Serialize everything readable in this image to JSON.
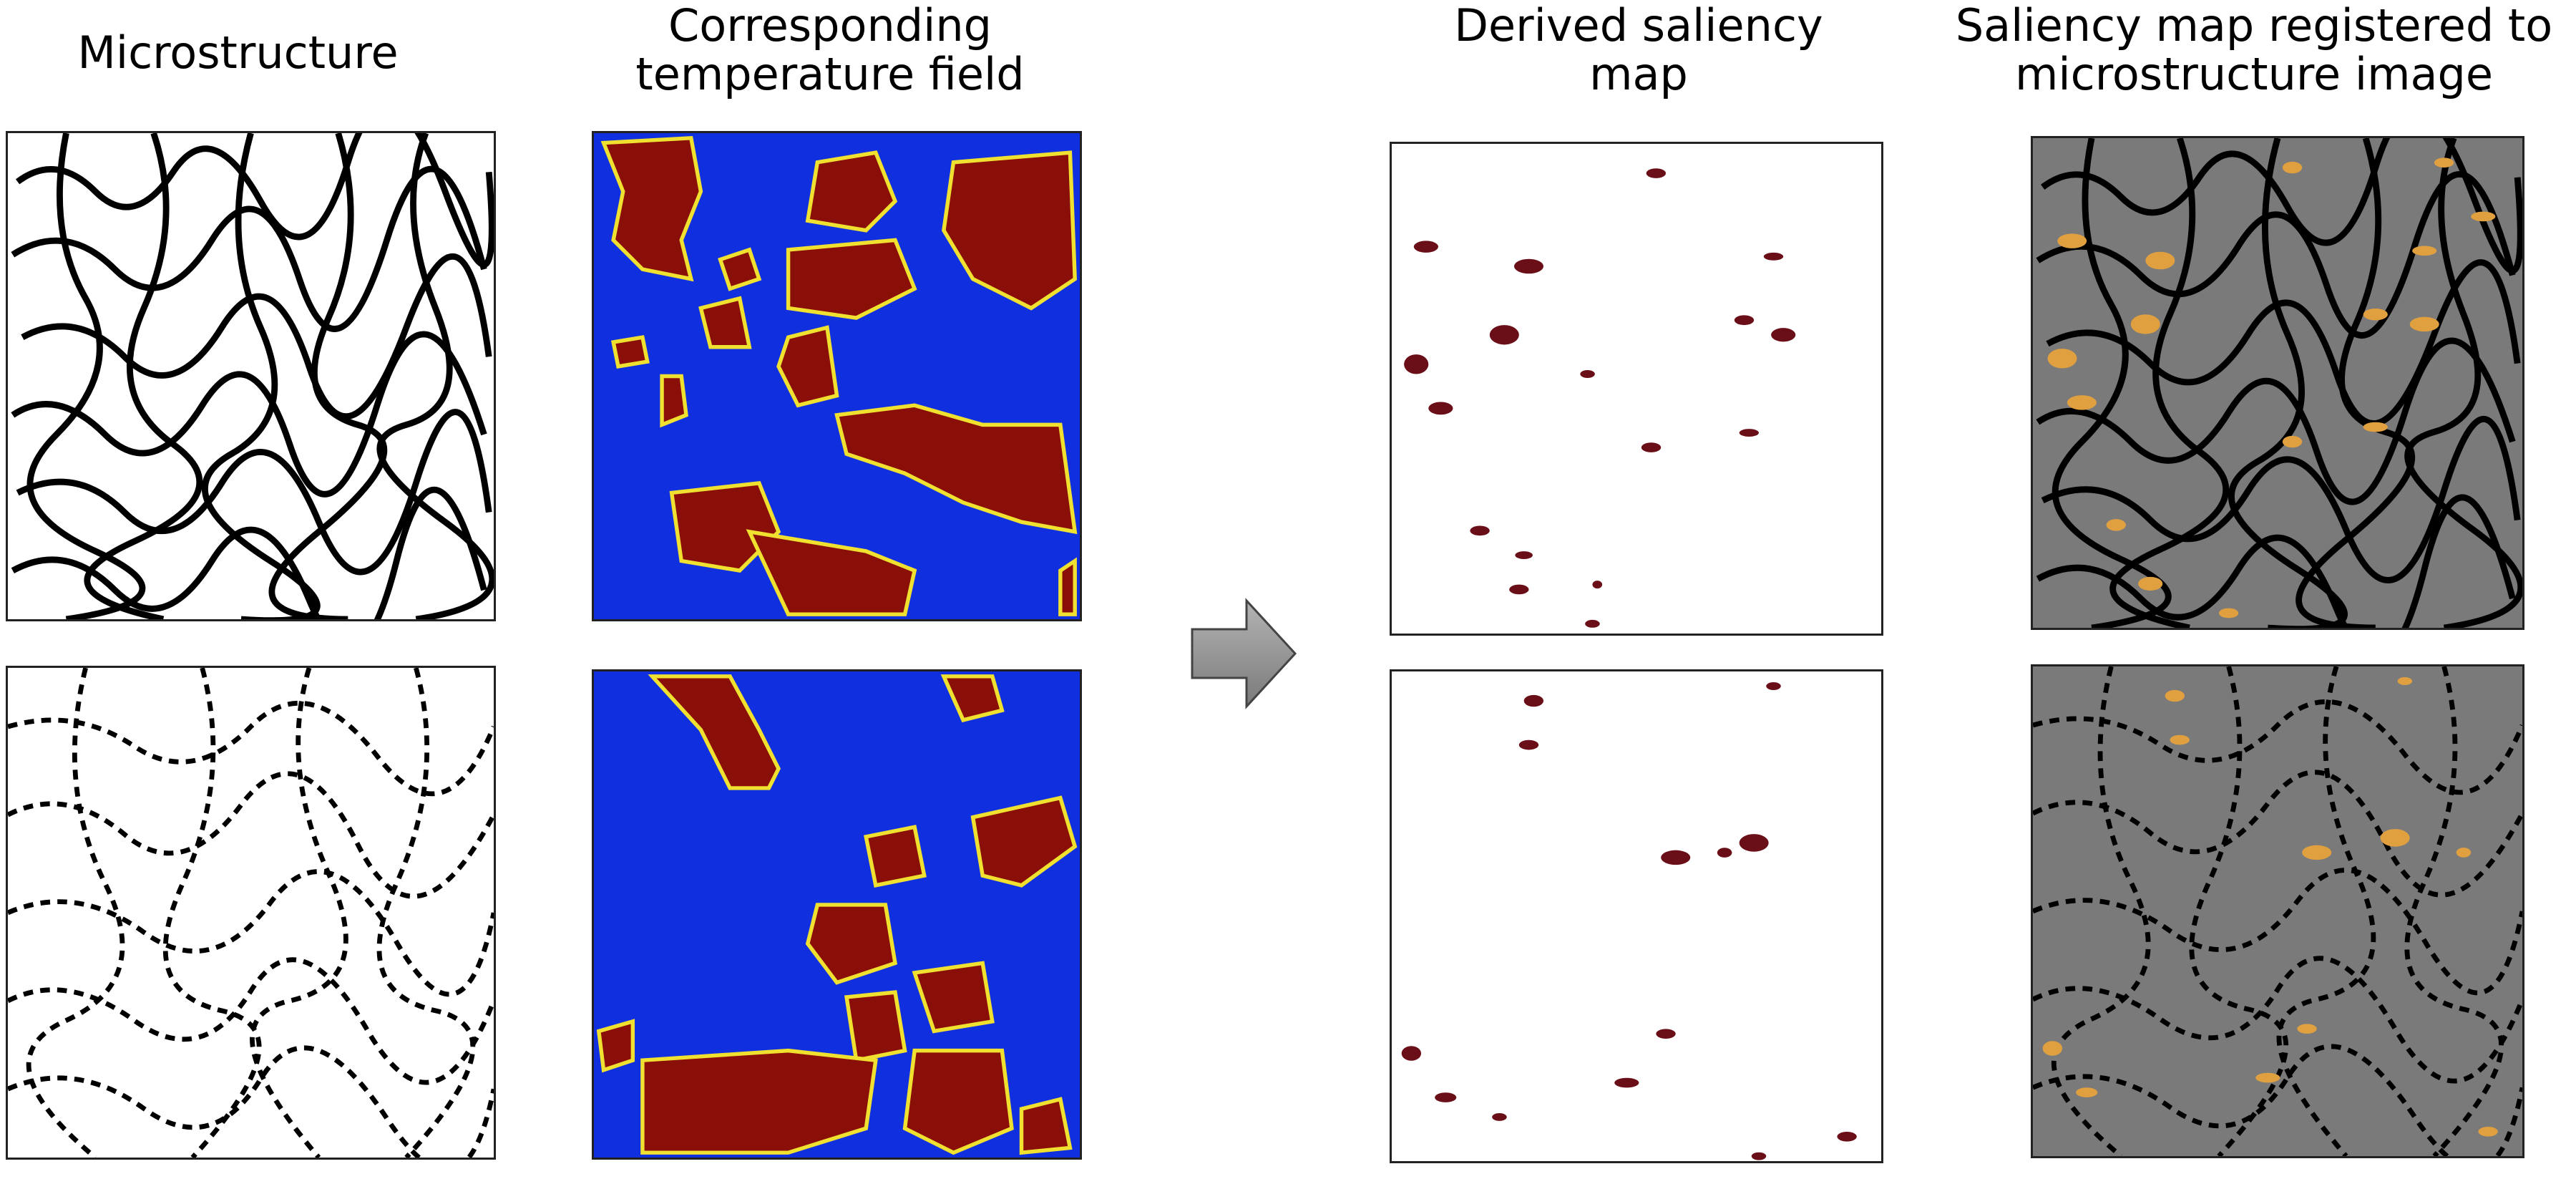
{
  "titles": {
    "microstructure": "Microstructure",
    "temperature": "Corresponding\ntemperature field",
    "saliency": "Derived saliency\nmap",
    "registered": "Saliency map registered to\nmicrostructure image"
  },
  "colors": {
    "micro_bg": "#ffffff",
    "micro_pore": "#000000",
    "temp_bg": "#1030e0",
    "temp_hot": "#8a0f08",
    "temp_edge": "#f0e030",
    "saliency_bg": "#ffffff",
    "saliency_mark": "#6a0f18",
    "registered_bg": "#7a7a7a",
    "registered_mark": "#e0a040",
    "arrow": "#8c8c8c"
  }
}
